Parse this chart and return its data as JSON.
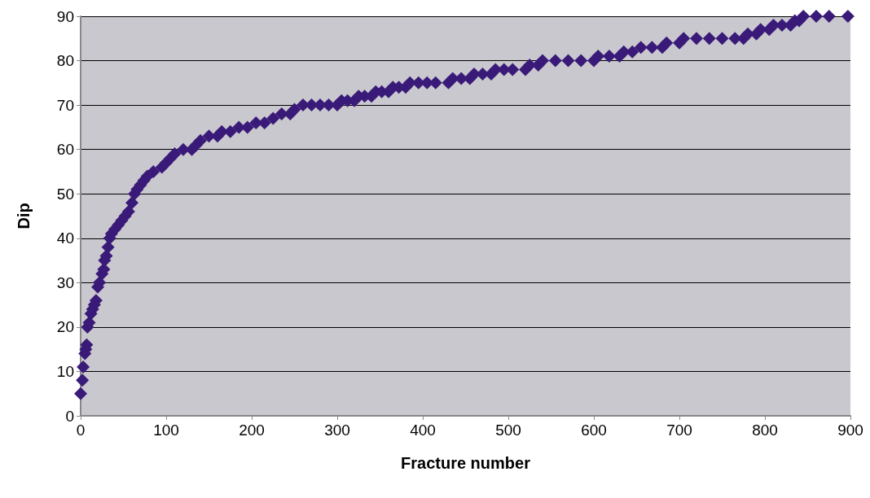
{
  "chart_data": {
    "type": "scatter",
    "xlabel": "Fracture number",
    "ylabel": "Dip",
    "color": "#3a1a78",
    "marker": "diamond",
    "grid": "y",
    "x": [
      0,
      2,
      3,
      5,
      6,
      7,
      8,
      10,
      12,
      14,
      16,
      18,
      20,
      22,
      25,
      27,
      28,
      30,
      32,
      34,
      36,
      40,
      44,
      48,
      52,
      56,
      60,
      63,
      66,
      70,
      74,
      78,
      85,
      95,
      100,
      105,
      110,
      120,
      130,
      135,
      140,
      150,
      160,
      165,
      175,
      185,
      195,
      205,
      215,
      225,
      235,
      245,
      250,
      260,
      270,
      280,
      290,
      300,
      305,
      312,
      320,
      325,
      332,
      340,
      345,
      352,
      360,
      365,
      372,
      380,
      385,
      395,
      405,
      415,
      430,
      435,
      445,
      455,
      460,
      470,
      480,
      485,
      495,
      505,
      520,
      525,
      535,
      540,
      555,
      570,
      585,
      600,
      605,
      618,
      630,
      635,
      645,
      655,
      668,
      680,
      685,
      700,
      705,
      720,
      735,
      750,
      765,
      775,
      780,
      790,
      795,
      805,
      810,
      820,
      830,
      835,
      840,
      845,
      860,
      875,
      897
    ],
    "values": [
      5,
      8,
      11,
      14,
      15,
      16,
      20,
      21,
      23,
      24,
      25,
      26,
      29,
      30,
      32,
      33,
      35,
      36,
      38,
      40,
      41,
      42,
      43,
      44,
      45,
      46,
      48,
      50,
      51,
      52,
      53,
      54,
      55,
      56,
      57,
      58,
      59,
      60,
      60,
      61,
      62,
      63,
      63,
      64,
      64,
      65,
      65,
      66,
      66,
      67,
      68,
      68,
      69,
      70,
      70,
      70,
      70,
      70,
      71,
      71,
      71,
      72,
      72,
      72,
      73,
      73,
      73,
      74,
      74,
      74,
      75,
      75,
      75,
      75,
      75,
      76,
      76,
      76,
      77,
      77,
      77,
      78,
      78,
      78,
      78,
      79,
      79,
      80,
      80,
      80,
      80,
      80,
      81,
      81,
      81,
      82,
      82,
      83,
      83,
      83,
      84,
      84,
      85,
      85,
      85,
      85,
      85,
      85,
      86,
      86,
      87,
      87,
      88,
      88,
      88,
      89,
      89,
      90,
      90,
      90,
      90
    ],
    "xlim": [
      0,
      900
    ],
    "xticks": [
      0,
      100,
      200,
      300,
      400,
      500,
      600,
      700,
      800,
      900
    ],
    "ylim": [
      0,
      90
    ],
    "yticks": [
      0,
      10,
      20,
      30,
      40,
      50,
      60,
      70,
      80,
      90
    ]
  }
}
